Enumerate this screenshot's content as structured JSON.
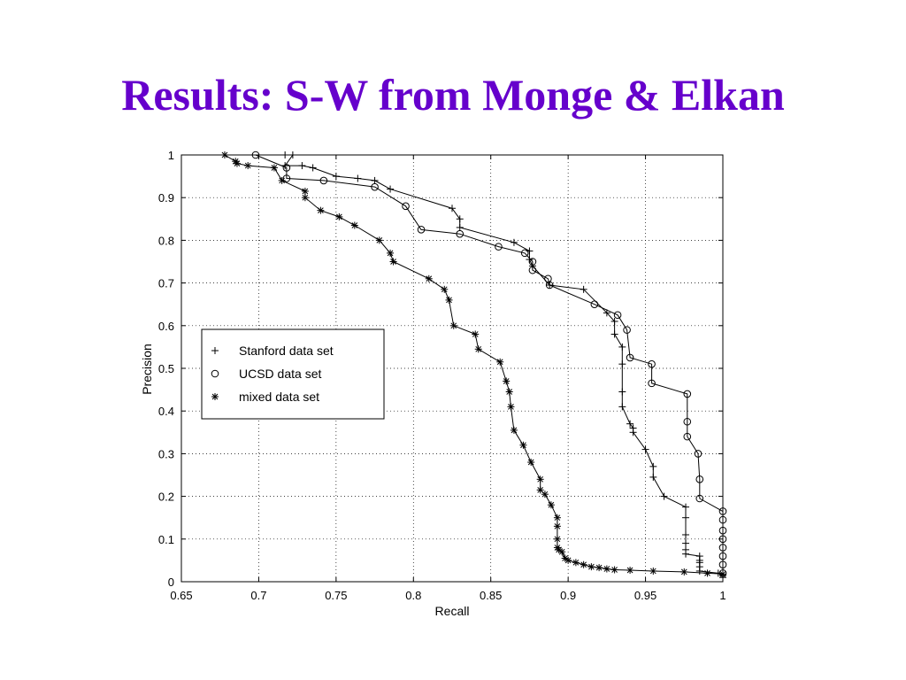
{
  "slide": {
    "title": "Results: S-W from Monge & Elkan",
    "title_color": "#6600cc"
  },
  "chart_data": {
    "type": "line",
    "xlabel": "Recall",
    "ylabel": "Precision",
    "xlim": [
      0.65,
      1
    ],
    "ylim": [
      0,
      1
    ],
    "xticks": [
      "0.65",
      "0.7",
      "0.75",
      "0.8",
      "0.85",
      "0.9",
      "0.95",
      "1"
    ],
    "yticks": [
      "0",
      "0.1",
      "0.2",
      "0.3",
      "0.4",
      "0.5",
      "0.6",
      "0.7",
      "0.8",
      "0.9",
      "1"
    ],
    "grid": true,
    "legend_position": "center-left",
    "series": [
      {
        "name": "Stanford data set",
        "marker": "plus",
        "x": [
          0.717,
          0.722,
          0.717,
          0.728,
          0.735,
          0.75,
          0.764,
          0.775,
          0.785,
          0.825,
          0.83,
          0.83,
          0.865,
          0.875,
          0.875,
          0.877,
          0.888,
          0.91,
          0.925,
          0.93,
          0.93,
          0.935,
          0.935,
          0.935,
          0.935,
          0.94,
          0.942,
          0.942,
          0.95,
          0.955,
          0.955,
          0.962,
          0.976,
          0.976,
          0.976,
          0.976,
          0.976,
          0.976,
          0.985,
          0.985,
          0.985,
          0.985,
          0.985,
          0.997,
          1,
          1
        ],
        "y": [
          1,
          1,
          0.975,
          0.975,
          0.97,
          0.95,
          0.945,
          0.94,
          0.92,
          0.875,
          0.85,
          0.83,
          0.795,
          0.775,
          0.755,
          0.74,
          0.695,
          0.685,
          0.63,
          0.61,
          0.58,
          0.55,
          0.51,
          0.445,
          0.41,
          0.37,
          0.36,
          0.35,
          0.31,
          0.27,
          0.245,
          0.2,
          0.175,
          0.15,
          0.11,
          0.09,
          0.075,
          0.065,
          0.06,
          0.05,
          0.045,
          0.035,
          0.025,
          0.02,
          0.015,
          0.01
        ]
      },
      {
        "name": "UCSD data set",
        "marker": "circle",
        "x": [
          0.698,
          0.718,
          0.718,
          0.742,
          0.775,
          0.795,
          0.805,
          0.83,
          0.855,
          0.872,
          0.877,
          0.877,
          0.887,
          0.888,
          0.917,
          0.932,
          0.938,
          0.94,
          0.954,
          0.954,
          0.977,
          0.977,
          0.977,
          0.984,
          0.985,
          0.985,
          1,
          1,
          1,
          1,
          1,
          1,
          1,
          1
        ],
        "y": [
          1,
          0.97,
          0.945,
          0.94,
          0.925,
          0.88,
          0.825,
          0.815,
          0.785,
          0.77,
          0.75,
          0.73,
          0.71,
          0.695,
          0.65,
          0.625,
          0.59,
          0.525,
          0.51,
          0.465,
          0.44,
          0.375,
          0.34,
          0.3,
          0.24,
          0.195,
          0.165,
          0.145,
          0.12,
          0.1,
          0.08,
          0.06,
          0.04,
          0.02
        ]
      },
      {
        "name": "mixed data set",
        "marker": "star",
        "x": [
          0.678,
          0.685,
          0.686,
          0.693,
          0.71,
          0.715,
          0.73,
          0.73,
          0.74,
          0.752,
          0.762,
          0.778,
          0.785,
          0.787,
          0.81,
          0.82,
          0.823,
          0.826,
          0.84,
          0.842,
          0.856,
          0.86,
          0.862,
          0.863,
          0.865,
          0.871,
          0.876,
          0.882,
          0.882,
          0.885,
          0.889,
          0.893,
          0.893,
          0.893,
          0.893,
          0.894,
          0.896,
          0.898,
          0.9,
          0.905,
          0.91,
          0.915,
          0.92,
          0.925,
          0.93,
          0.94,
          0.955,
          0.975,
          0.99,
          1
        ],
        "y": [
          1,
          0.985,
          0.98,
          0.975,
          0.97,
          0.94,
          0.915,
          0.9,
          0.87,
          0.855,
          0.835,
          0.8,
          0.77,
          0.75,
          0.71,
          0.685,
          0.66,
          0.6,
          0.58,
          0.545,
          0.515,
          0.47,
          0.445,
          0.41,
          0.355,
          0.32,
          0.28,
          0.24,
          0.215,
          0.205,
          0.18,
          0.15,
          0.13,
          0.1,
          0.08,
          0.075,
          0.07,
          0.055,
          0.05,
          0.045,
          0.04,
          0.035,
          0.033,
          0.03,
          0.028,
          0.027,
          0.025,
          0.023,
          0.02,
          0.018
        ]
      }
    ]
  }
}
